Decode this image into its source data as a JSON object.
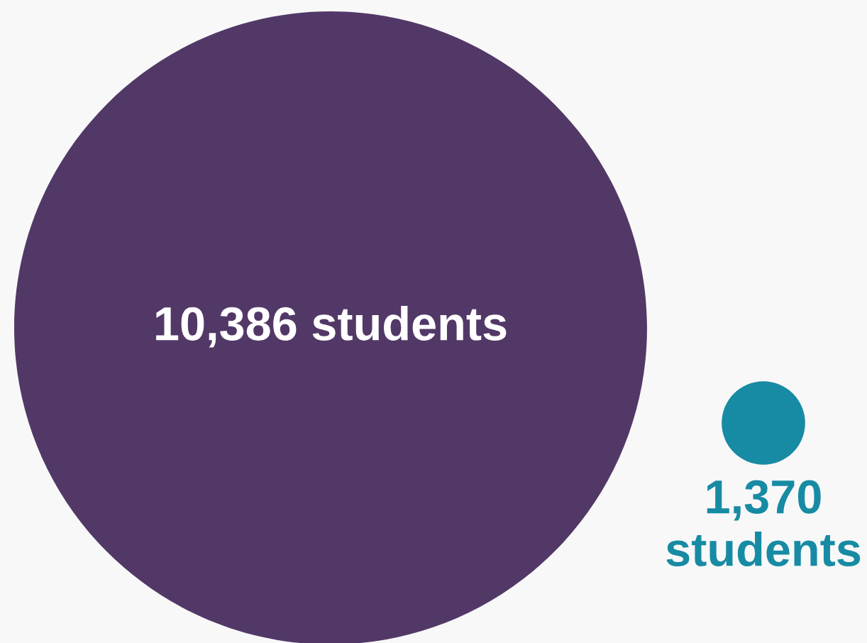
{
  "chart_data": {
    "type": "other",
    "categories": [
      null,
      null
    ],
    "values": [
      10386,
      1370
    ],
    "value_labels": [
      "10,386 students",
      "1,370 students"
    ],
    "colors": [
      "#523867",
      "#178ba3"
    ]
  }
}
